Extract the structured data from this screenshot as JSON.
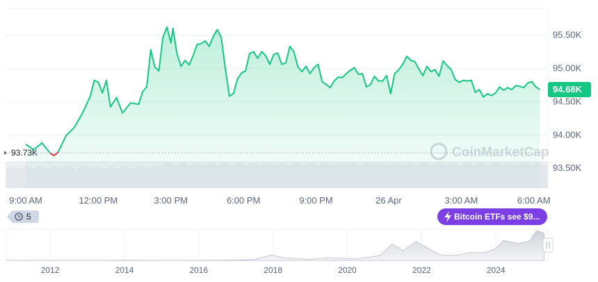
{
  "chart_data": {
    "type": "area",
    "series": [
      {
        "values": [
          {
            "t": "09:00",
            "v": 93.86
          },
          {
            "t": "09:20",
            "v": 93.78
          },
          {
            "t": "09:40",
            "v": 93.88
          },
          {
            "t": "10:00",
            "v": 93.73
          },
          {
            "t": "10:10",
            "v": 93.69
          },
          {
            "t": "10:20",
            "v": 93.74
          },
          {
            "t": "10:40",
            "v": 93.99
          },
          {
            "t": "11:00",
            "v": 94.11
          },
          {
            "t": "11:20",
            "v": 94.32
          },
          {
            "t": "11:40",
            "v": 94.58
          },
          {
            "t": "11:50",
            "v": 94.82
          },
          {
            "t": "12:00",
            "v": 94.79
          },
          {
            "t": "12:10",
            "v": 94.63
          },
          {
            "t": "12:20",
            "v": 94.82
          },
          {
            "t": "12:30",
            "v": 94.42
          },
          {
            "t": "12:45",
            "v": 94.56
          },
          {
            "t": "13:00",
            "v": 94.33
          },
          {
            "t": "13:20",
            "v": 94.48
          },
          {
            "t": "13:40",
            "v": 94.46
          },
          {
            "t": "13:50",
            "v": 94.65
          },
          {
            "t": "14:00",
            "v": 94.72
          },
          {
            "t": "14:10",
            "v": 95.28
          },
          {
            "t": "14:20",
            "v": 95.02
          },
          {
            "t": "14:30",
            "v": 94.96
          },
          {
            "t": "14:40",
            "v": 95.46
          },
          {
            "t": "14:50",
            "v": 95.62
          },
          {
            "t": "15:00",
            "v": 95.38
          },
          {
            "t": "15:05",
            "v": 95.6
          },
          {
            "t": "15:15",
            "v": 95.22
          },
          {
            "t": "15:25",
            "v": 95.03
          },
          {
            "t": "15:35",
            "v": 95.12
          },
          {
            "t": "15:45",
            "v": 95.05
          },
          {
            "t": "15:55",
            "v": 95.19
          },
          {
            "t": "16:05",
            "v": 95.36
          },
          {
            "t": "16:15",
            "v": 95.37
          },
          {
            "t": "16:25",
            "v": 95.41
          },
          {
            "t": "16:35",
            "v": 95.33
          },
          {
            "t": "16:45",
            "v": 95.48
          },
          {
            "t": "16:55",
            "v": 95.58
          },
          {
            "t": "17:05",
            "v": 95.46
          },
          {
            "t": "17:15",
            "v": 94.99
          },
          {
            "t": "17:25",
            "v": 94.58
          },
          {
            "t": "17:35",
            "v": 94.62
          },
          {
            "t": "17:45",
            "v": 94.84
          },
          {
            "t": "17:55",
            "v": 94.93
          },
          {
            "t": "18:05",
            "v": 94.96
          },
          {
            "t": "18:15",
            "v": 95.22
          },
          {
            "t": "18:25",
            "v": 95.25
          },
          {
            "t": "18:35",
            "v": 95.15
          },
          {
            "t": "18:45",
            "v": 95.25
          },
          {
            "t": "18:55",
            "v": 95.19
          },
          {
            "t": "19:05",
            "v": 95.06
          },
          {
            "t": "19:15",
            "v": 95.21
          },
          {
            "t": "19:25",
            "v": 95.23
          },
          {
            "t": "19:35",
            "v": 95.06
          },
          {
            "t": "19:45",
            "v": 95.08
          },
          {
            "t": "19:55",
            "v": 95.33
          },
          {
            "t": "20:05",
            "v": 95.25
          },
          {
            "t": "20:15",
            "v": 95.02
          },
          {
            "t": "20:25",
            "v": 94.95
          },
          {
            "t": "20:35",
            "v": 95.03
          },
          {
            "t": "20:45",
            "v": 94.92
          },
          {
            "t": "20:55",
            "v": 95.01
          },
          {
            "t": "21:05",
            "v": 95.06
          },
          {
            "t": "21:15",
            "v": 94.8
          },
          {
            "t": "21:25",
            "v": 94.76
          },
          {
            "t": "21:35",
            "v": 94.71
          },
          {
            "t": "21:45",
            "v": 94.81
          },
          {
            "t": "21:55",
            "v": 94.87
          },
          {
            "t": "22:05",
            "v": 94.86
          },
          {
            "t": "22:15",
            "v": 94.92
          },
          {
            "t": "22:25",
            "v": 94.97
          },
          {
            "t": "22:35",
            "v": 95.01
          },
          {
            "t": "22:45",
            "v": 94.91
          },
          {
            "t": "22:55",
            "v": 94.92
          },
          {
            "t": "23:05",
            "v": 94.72
          },
          {
            "t": "23:15",
            "v": 94.76
          },
          {
            "t": "23:25",
            "v": 94.88
          },
          {
            "t": "23:35",
            "v": 94.81
          },
          {
            "t": "23:45",
            "v": 94.81
          },
          {
            "t": "23:55",
            "v": 94.89
          },
          {
            "t": "00:05",
            "v": 94.62
          },
          {
            "t": "00:15",
            "v": 94.92
          },
          {
            "t": "00:25",
            "v": 94.98
          },
          {
            "t": "00:35",
            "v": 95.06
          },
          {
            "t": "00:45",
            "v": 95.18
          },
          {
            "t": "00:55",
            "v": 95.12
          },
          {
            "t": "01:05",
            "v": 95.1
          },
          {
            "t": "01:15",
            "v": 94.99
          },
          {
            "t": "01:25",
            "v": 94.89
          },
          {
            "t": "01:35",
            "v": 95.03
          },
          {
            "t": "01:45",
            "v": 94.95
          },
          {
            "t": "01:55",
            "v": 94.98
          },
          {
            "t": "02:05",
            "v": 94.88
          },
          {
            "t": "02:15",
            "v": 95.11
          },
          {
            "t": "02:25",
            "v": 95.04
          },
          {
            "t": "02:35",
            "v": 94.98
          },
          {
            "t": "02:45",
            "v": 94.83
          },
          {
            "t": "02:55",
            "v": 94.79
          },
          {
            "t": "03:05",
            "v": 94.82
          },
          {
            "t": "03:15",
            "v": 94.81
          },
          {
            "t": "03:25",
            "v": 94.82
          },
          {
            "t": "03:35",
            "v": 94.64
          },
          {
            "t": "03:45",
            "v": 94.68
          },
          {
            "t": "03:55",
            "v": 94.57
          },
          {
            "t": "04:05",
            "v": 94.62
          },
          {
            "t": "04:15",
            "v": 94.59
          },
          {
            "t": "04:25",
            "v": 94.63
          },
          {
            "t": "04:35",
            "v": 94.72
          },
          {
            "t": "04:45",
            "v": 94.67
          },
          {
            "t": "04:55",
            "v": 94.71
          },
          {
            "t": "05:05",
            "v": 94.68
          },
          {
            "t": "05:15",
            "v": 94.74
          },
          {
            "t": "05:25",
            "v": 94.73
          },
          {
            "t": "05:35",
            "v": 94.71
          },
          {
            "t": "05:45",
            "v": 94.78
          },
          {
            "t": "05:55",
            "v": 94.8
          },
          {
            "t": "06:05",
            "v": 94.72
          },
          {
            "t": "06:15",
            "v": 94.68
          }
        ]
      }
    ],
    "current_value": "94.68K",
    "start_value": "93.73K",
    "start": 93.73,
    "ylim": [
      93.2,
      95.9
    ],
    "y_ticks": [
      {
        "v": 95.5,
        "label": "95.50K"
      },
      {
        "v": 95.0,
        "label": "95.00K"
      },
      {
        "v": 94.5,
        "label": "94.50K"
      },
      {
        "v": 94.0,
        "label": "94.00K"
      },
      {
        "v": 93.5,
        "label": "93.50K"
      }
    ],
    "x_ticks": [
      {
        "t": "09:00",
        "label": "9:00 AM"
      },
      {
        "t": "12:00",
        "label": "12:00 PM"
      },
      {
        "t": "15:00",
        "label": "3:00 PM"
      },
      {
        "t": "18:00",
        "label": "6:00 PM"
      },
      {
        "t": "21:00",
        "label": "9:00 PM"
      },
      {
        "t": "00:00",
        "label": "26 Apr"
      },
      {
        "t": "03:00",
        "label": "3:00 AM"
      },
      {
        "t": "06:00",
        "label": "6:00 AM"
      }
    ],
    "grid": true,
    "colors": {
      "up": "#16c784",
      "down": "#ea3943",
      "pill": "#7b3fe4",
      "axis_bg": "#16c784"
    },
    "watermark": "CoinMarketCap",
    "events_badge": {
      "count": "5",
      "icon": "history-icon"
    },
    "news_pill": {
      "text": "Bitcoin ETFs see $9...",
      "icon": "lightning-icon"
    },
    "navigator": {
      "type": "area",
      "x_ticks": [
        "2012",
        "2014",
        "2016",
        "2018",
        "2020",
        "2022",
        "2024"
      ],
      "years": [
        2010.8,
        2011.5,
        2012,
        2012.5,
        2013,
        2013.5,
        2013.9,
        2014.5,
        2015,
        2015.5,
        2016,
        2016.5,
        2017,
        2017.5,
        2017.95,
        2018.3,
        2018.6,
        2019,
        2019.5,
        2019.9,
        2020.3,
        2020.6,
        2020.9,
        2021.2,
        2021.5,
        2021.85,
        2022.2,
        2022.5,
        2022.9,
        2023.3,
        2023.7,
        2024.0,
        2024.2,
        2024.6,
        2024.9,
        2025.1,
        2025.3
      ],
      "values": [
        0.1,
        0.2,
        0.2,
        0.2,
        0.2,
        0.2,
        1,
        0.6,
        0.3,
        0.3,
        0.5,
        0.7,
        1.2,
        3,
        19,
        9,
        7,
        4,
        10,
        7,
        7,
        11,
        19,
        58,
        35,
        67,
        40,
        20,
        17,
        28,
        27,
        42,
        70,
        60,
        68,
        105,
        95
      ]
    }
  }
}
